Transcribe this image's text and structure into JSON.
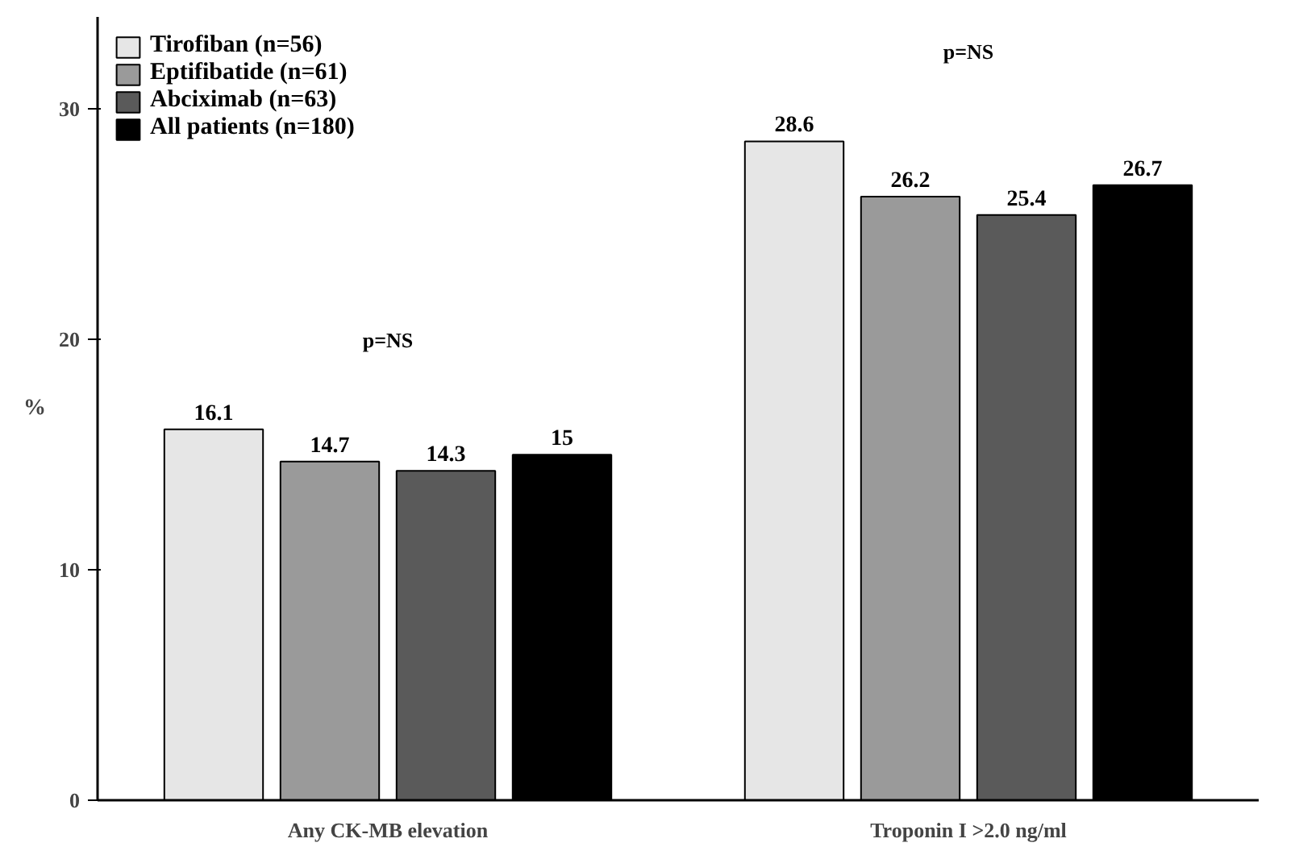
{
  "chart_data": {
    "type": "bar",
    "ylabel": "%",
    "categories": [
      "Any CK-MB elevation",
      "Troponin I >2.0 ng/ml"
    ],
    "series": [
      {
        "name": "Tirofiban (n=56)",
        "color": "#e6e6e6",
        "values": [
          16.1,
          28.6
        ]
      },
      {
        "name": "Eptifibatide (n=61)",
        "color": "#9a9a9a",
        "values": [
          14.7,
          26.2
        ]
      },
      {
        "name": "Abciximab (n=63)",
        "color": "#5a5a5a",
        "values": [
          14.3,
          25.4
        ]
      },
      {
        "name": "All patients (n=180)",
        "color": "#000000",
        "values": [
          15,
          26.7
        ]
      }
    ],
    "ylim": [
      0,
      34
    ],
    "yticks": [
      0,
      10,
      20,
      30
    ],
    "grid": false,
    "legend": "top left",
    "data_labels": true,
    "annotations": [
      "p=NS",
      "p=NS"
    ]
  }
}
